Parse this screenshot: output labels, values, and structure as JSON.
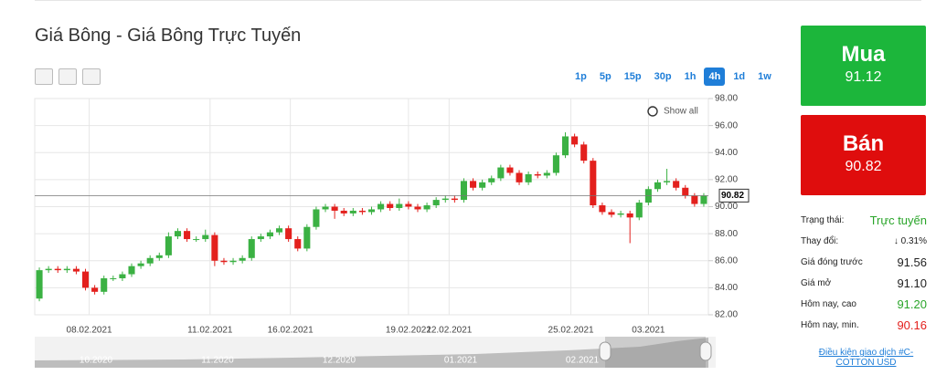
{
  "header": {
    "title": "Giá Bông - Giá Bông Trực Tuyến"
  },
  "timeframes": [
    {
      "label": "1p",
      "active": false
    },
    {
      "label": "5p",
      "active": false
    },
    {
      "label": "15p",
      "active": false
    },
    {
      "label": "30p",
      "active": false
    },
    {
      "label": "1h",
      "active": false
    },
    {
      "label": "4h",
      "active": true
    },
    {
      "label": "1d",
      "active": false
    },
    {
      "label": "1w",
      "active": false
    }
  ],
  "show_all": "Show all",
  "chart_data": {
    "type": "candlestick",
    "up_color": "#3bb143",
    "down_color": "#e3201d",
    "open": [
      83.2,
      85.3,
      85.4,
      85.3,
      85.4,
      85.2,
      84.0,
      83.7,
      84.7,
      84.7,
      85.0,
      85.6,
      85.8,
      86.2,
      86.4,
      87.8,
      88.2,
      87.6,
      87.6,
      87.9,
      86.0,
      85.9,
      86.0,
      86.2,
      87.6,
      87.8,
      88.1,
      88.4,
      87.6,
      86.9,
      88.5,
      89.8,
      90.0,
      89.7,
      89.5,
      89.7,
      89.6,
      89.8,
      90.2,
      89.9,
      90.2,
      90.0,
      89.8,
      90.1,
      90.5,
      90.6,
      90.5,
      91.9,
      91.4,
      91.8,
      92.1,
      92.9,
      92.5,
      91.8,
      92.4,
      92.3,
      92.5,
      93.8,
      95.2,
      94.6,
      93.4,
      90.1,
      89.6,
      89.4,
      89.5,
      89.2,
      90.3,
      91.3,
      91.8,
      91.9,
      91.4,
      90.8,
      90.2
    ],
    "high": [
      85.5,
      85.6,
      85.6,
      85.6,
      85.6,
      85.4,
      84.2,
      84.9,
      84.9,
      85.2,
      85.8,
      86.0,
      86.4,
      86.6,
      88.1,
      88.4,
      88.4,
      87.8,
      88.3,
      88.1,
      86.2,
      86.2,
      86.4,
      87.8,
      88.0,
      88.3,
      88.6,
      88.6,
      87.8,
      88.7,
      90.0,
      90.2,
      90.2,
      89.9,
      89.9,
      89.9,
      90.0,
      90.4,
      90.4,
      90.6,
      90.4,
      90.2,
      90.3,
      90.7,
      90.8,
      90.8,
      92.1,
      92.1,
      92.0,
      92.3,
      93.1,
      93.1,
      92.7,
      92.6,
      92.6,
      92.7,
      94.0,
      95.5,
      95.4,
      94.8,
      93.6,
      90.3,
      89.8,
      89.7,
      89.7,
      90.5,
      91.5,
      92.0,
      92.8,
      92.1,
      91.6,
      91.0,
      91.0
    ],
    "low": [
      83.0,
      85.1,
      85.1,
      85.1,
      85.0,
      83.8,
      83.5,
      83.5,
      84.5,
      84.5,
      84.8,
      85.4,
      85.6,
      86.0,
      86.2,
      87.6,
      87.4,
      87.4,
      87.4,
      85.6,
      85.7,
      85.7,
      85.8,
      86.0,
      87.4,
      87.6,
      87.9,
      87.4,
      86.7,
      86.7,
      88.3,
      89.6,
      89.1,
      89.3,
      89.3,
      89.4,
      89.4,
      89.6,
      89.7,
      89.7,
      89.8,
      89.6,
      89.6,
      89.9,
      90.3,
      90.3,
      90.3,
      91.2,
      91.2,
      91.6,
      91.9,
      92.3,
      91.6,
      91.6,
      92.1,
      92.1,
      92.3,
      93.6,
      94.4,
      93.2,
      89.9,
      89.4,
      89.2,
      89.2,
      87.3,
      89.0,
      90.1,
      91.1,
      91.6,
      91.2,
      90.6,
      90.0,
      90.0
    ],
    "close": [
      85.3,
      85.4,
      85.3,
      85.4,
      85.2,
      84.0,
      83.7,
      84.7,
      84.7,
      85.0,
      85.6,
      85.8,
      86.2,
      86.4,
      87.8,
      88.2,
      87.6,
      87.6,
      87.9,
      86.0,
      85.9,
      86.0,
      86.2,
      87.6,
      87.8,
      88.1,
      88.4,
      87.6,
      86.9,
      88.5,
      89.8,
      90.0,
      89.7,
      89.5,
      89.7,
      89.6,
      89.8,
      90.2,
      89.9,
      90.2,
      90.0,
      89.8,
      90.1,
      90.5,
      90.6,
      90.5,
      91.9,
      91.4,
      91.8,
      92.1,
      92.9,
      92.5,
      91.8,
      92.4,
      92.3,
      92.5,
      93.8,
      95.2,
      94.6,
      93.4,
      90.1,
      89.6,
      89.4,
      89.5,
      89.2,
      90.3,
      91.3,
      91.8,
      91.9,
      91.4,
      90.8,
      90.2,
      90.8
    ],
    "xlim": [
      -0.5,
      72.5
    ],
    "xticks": [
      {
        "value": 5.4,
        "label": "08.02.2021"
      },
      {
        "value": 18.5,
        "label": "11.02.2021"
      },
      {
        "value": 27.2,
        "label": "16.02.2021"
      },
      {
        "value": 40,
        "label": "19.02.2021"
      },
      {
        "value": 44.4,
        "label": "22.02.2021"
      },
      {
        "value": 57.6,
        "label": "25.02.2021"
      },
      {
        "value": 66,
        "label": "03.2021"
      }
    ],
    "ylim": [
      82,
      98
    ],
    "yticks": [
      {
        "value": 82,
        "label": "82.00"
      },
      {
        "value": 84,
        "label": "84.00"
      },
      {
        "value": 86,
        "label": "86.00"
      },
      {
        "value": 88,
        "label": "88.00"
      },
      {
        "value": 90,
        "label": "90.00"
      },
      {
        "value": 92,
        "label": "92.00"
      },
      {
        "value": 94,
        "label": "94.00"
      },
      {
        "value": 96,
        "label": "96.00"
      },
      {
        "value": 98,
        "label": "98.00"
      }
    ],
    "last_price": {
      "value": 90.82,
      "label": "90.82"
    },
    "grid": true,
    "navigator_labels": [
      "10.2020",
      "11.2020",
      "12.2020",
      "01.2021",
      "02.2021"
    ]
  },
  "panel": {
    "buy": {
      "label": "Mua",
      "price": "91.12"
    },
    "sell": {
      "label": "Bán",
      "price": "90.82"
    },
    "rows": [
      [
        "Trạng thái:",
        "Trực tuyến"
      ],
      [
        "Thay đổi:",
        "0.31%"
      ],
      [
        "Giá đóng trước",
        "91.56"
      ],
      [
        "Giá mở",
        "91.10"
      ],
      [
        "Hôm nay, cao",
        "91.20"
      ],
      [
        "Hôm nay, min.",
        "90.16"
      ]
    ],
    "link": "Điều kiện giao dịch #C-COTTON USD"
  }
}
